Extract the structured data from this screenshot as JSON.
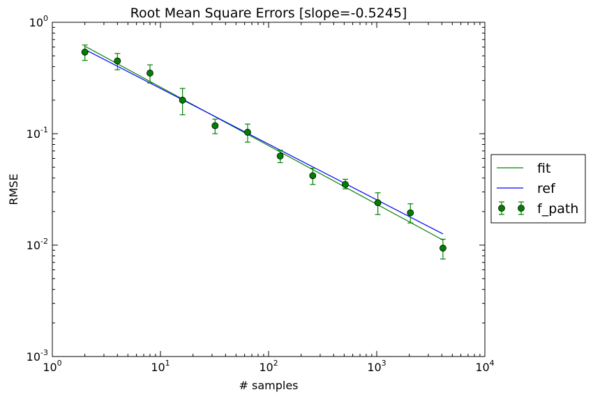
{
  "chart_data": {
    "type": "scatter",
    "title": "Root Mean Square Errors [slope=-0.5245]",
    "xlabel": "# samples",
    "ylabel": "RMSE",
    "xscale": "log",
    "yscale": "log",
    "xlim": [
      1,
      10000
    ],
    "ylim": [
      0.001,
      1
    ],
    "x_ticks": [
      {
        "value": 1,
        "base": "10",
        "exp": "0"
      },
      {
        "value": 10,
        "base": "10",
        "exp": "1"
      },
      {
        "value": 100,
        "base": "10",
        "exp": "2"
      },
      {
        "value": 1000,
        "base": "10",
        "exp": "3"
      },
      {
        "value": 10000,
        "base": "10",
        "exp": "4"
      }
    ],
    "y_ticks": [
      {
        "value": 0.001,
        "base": "10",
        "exp": "-3"
      },
      {
        "value": 0.01,
        "base": "10",
        "exp": "-2"
      },
      {
        "value": 0.1,
        "base": "10",
        "exp": "-1"
      },
      {
        "value": 1,
        "base": "10",
        "exp": "0"
      }
    ],
    "grid": false,
    "legend_placement": "outside-right",
    "series": [
      {
        "name": "fit",
        "kind": "line",
        "color": "#008000",
        "x": [
          2,
          4096
        ],
        "y": [
          0.61,
          0.0111
        ]
      },
      {
        "name": "ref",
        "kind": "line",
        "color": "#0000ff",
        "x": [
          2,
          4096
        ],
        "y": [
          0.57,
          0.0126
        ]
      },
      {
        "name": "f_path",
        "kind": "errorbar",
        "color": "#008000",
        "marker_fill": "#008000",
        "x": [
          2,
          4,
          8,
          16,
          32,
          64,
          128,
          256,
          512,
          1024,
          2048,
          4096
        ],
        "y": [
          0.54,
          0.45,
          0.35,
          0.2,
          0.118,
          0.103,
          0.063,
          0.042,
          0.035,
          0.024,
          0.0195,
          0.0094
        ],
        "y_low": [
          0.455,
          0.375,
          0.285,
          0.148,
          0.1,
          0.084,
          0.055,
          0.035,
          0.032,
          0.0188,
          0.0158,
          0.0075
        ],
        "y_high": [
          0.625,
          0.525,
          0.415,
          0.255,
          0.135,
          0.122,
          0.071,
          0.049,
          0.039,
          0.0295,
          0.0235,
          0.0113
        ]
      }
    ]
  }
}
